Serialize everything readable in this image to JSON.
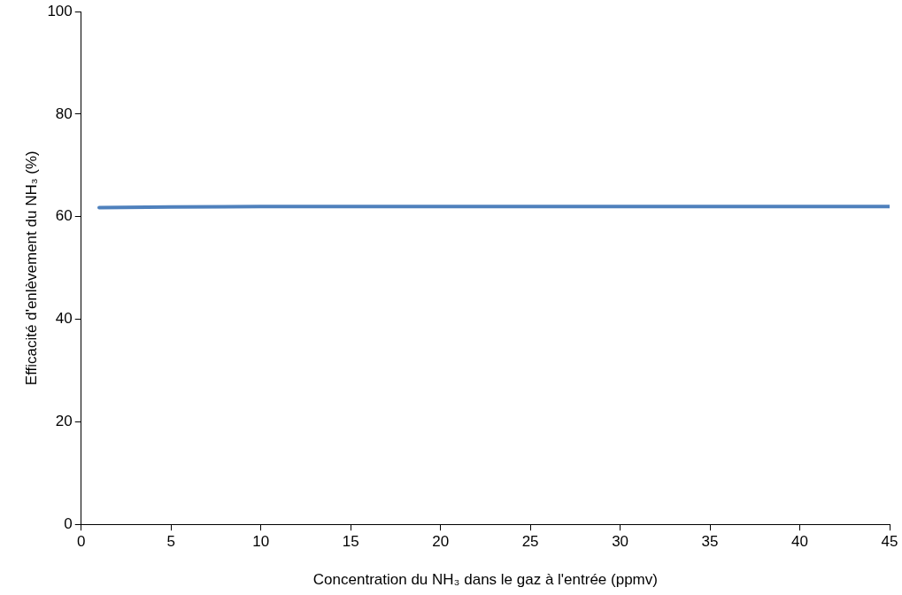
{
  "chart_data": {
    "type": "line",
    "xlabel": "Concentration du NH₃ dans le gaz à l'entrée (ppmv)",
    "ylabel": "Efficacité d'enlèvement du NH₃ (%)",
    "x": [
      1,
      5,
      10,
      15,
      20,
      25,
      30,
      35,
      40,
      45
    ],
    "series": [
      {
        "color": "#4f81bd",
        "values": [
          61.8,
          61.9,
          62,
          62,
          62,
          62,
          62,
          62,
          62,
          62
        ]
      }
    ],
    "xlim": [
      0,
      45
    ],
    "xticks": [
      0,
      5,
      10,
      15,
      20,
      25,
      30,
      35,
      40,
      45
    ],
    "ylim": [
      0,
      100
    ],
    "yticks": [
      0,
      20,
      40,
      60,
      80,
      100
    ],
    "grid": false,
    "legend": false,
    "marker": "none",
    "line_style": "solid"
  }
}
